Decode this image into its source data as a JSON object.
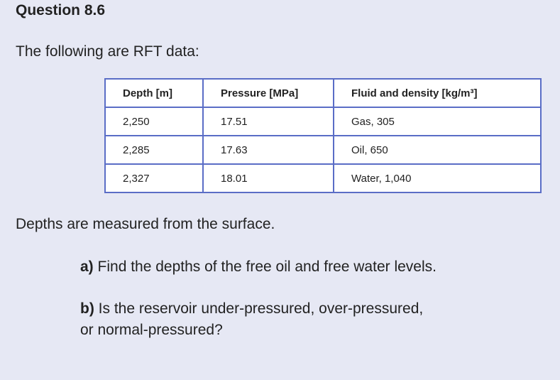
{
  "header": {
    "title": "Question 8.6"
  },
  "intro": "The following are RFT data:",
  "table": {
    "columns": [
      "Depth [m]",
      "Pressure [MPa]",
      "Fluid and density [kg/m³]"
    ],
    "rows": [
      [
        "2,250",
        "17.51",
        "Gas, 305"
      ],
      [
        "2,285",
        "17.63",
        "Oil, 650"
      ],
      [
        "2,327",
        "18.01",
        "Water, 1,040"
      ]
    ]
  },
  "note": "Depths are measured from the surface.",
  "questions": [
    {
      "label": "a)",
      "lines": [
        "Find the depths of the free oil and free water levels."
      ]
    },
    {
      "label": "b)",
      "lines": [
        "Is the reservoir under-pressured, over-pressured,",
        "or normal-pressured?"
      ]
    }
  ]
}
